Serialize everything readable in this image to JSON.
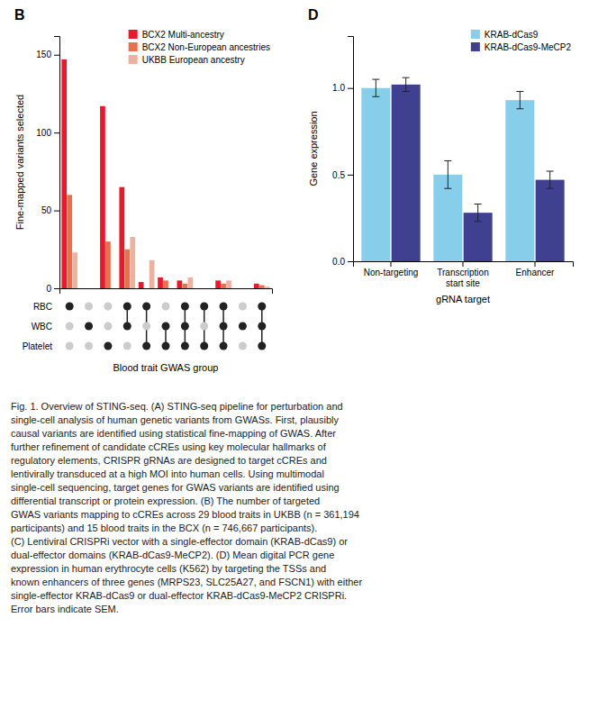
{
  "chart_data": [
    {
      "type": "bar",
      "title": "B",
      "categories": [
        null,
        null,
        null,
        null,
        null,
        null,
        null,
        null,
        null,
        null,
        null
      ],
      "series": [
        {
          "name": "BCX2 Multi-ancestry",
          "color": "#e8192c",
          "values": [
            147,
            0,
            117,
            65,
            4,
            7,
            5,
            0,
            5,
            0,
            3
          ]
        },
        {
          "name": "BCX2 Non-European ancestries",
          "color": "#e87050",
          "values": [
            60,
            0,
            30,
            25,
            0,
            5,
            3,
            0,
            3,
            0,
            2
          ]
        },
        {
          "name": "UKBB European ancestry",
          "color": "#f0b0a0",
          "values": [
            23,
            0,
            0,
            33,
            18,
            0,
            7,
            0,
            5,
            0,
            1
          ]
        }
      ],
      "ylabel": "Fine-mapped variants selected",
      "xlabel": "Blood trait GWAS group",
      "ylim": [
        0,
        162
      ],
      "yticks": [
        0,
        50,
        100,
        150
      ],
      "legend": "upper right",
      "dot_matrix": {
        "rows": [
          "RBC",
          "WBC",
          "Platelet"
        ],
        "values": [
          [
            1,
            0,
            0
          ],
          [
            0,
            1,
            0
          ],
          [
            0,
            0,
            1
          ],
          [
            1,
            1,
            0
          ],
          [
            1,
            0,
            1
          ],
          [
            0,
            1,
            1
          ],
          [
            1,
            1,
            1
          ],
          [
            1,
            0,
            1
          ],
          [
            1,
            1,
            1
          ],
          [
            0,
            1,
            0
          ],
          [
            1,
            1,
            1
          ]
        ]
      },
      "annotations": [
        "Fig. 1. Overview of STING-seq. (A) STING-seq pipeline for perturbation and\nsingle-cell analysis of human genetic variants from GWASs. First, plausibly\ncausal variants are identified using statistical fine-mapping of GWAS. After\nfurther refinement of candidate cCREs using key molecular hallmarks of\nregulatory elements, CRISPR gRNAs are designed to target cCREs and\nlentivirally transduced at a high MOI into human cells. Using multimodal\nsingle-cell sequencing, target genes for GWAS variants are identified using\ndifferential transcript or protein expression. (B) The number of targeted"
      ]
    },
    {
      "type": "bar",
      "title": "D",
      "categories": [
        "Non-targeting",
        "Transcription\nstart site",
        "Enhancer"
      ],
      "series": [
        {
          "name": "KRAB-dCas9",
          "color": "#87ceeb",
          "values": [
            1.0,
            0.5,
            0.93
          ],
          "errors": [
            0.05,
            0.08,
            0.05
          ]
        },
        {
          "name": "KRAB-dCas9-MeCP2",
          "color": "#404090",
          "values": [
            1.02,
            0.28,
            0.47
          ],
          "errors": [
            0.04,
            0.05,
            0.05
          ]
        }
      ],
      "ylabel": "Gene expression",
      "xlabel": "gRNA target",
      "ylim": [
        0,
        1.3
      ],
      "yticks": [
        {
          "value": 0,
          "label": "0.0"
        },
        {
          "value": 0.5,
          "label": "0.5"
        },
        {
          "value": 1,
          "label": "1.0"
        }
      ],
      "legend": "upper right",
      "annotations": [
        "GWAS variants mapping to cCREs across 29 blood traits in UKBB (n = 361,194\nparticipants) and 15 blood traits in the BCX (n = 746,667 participants).\n(C) Lentiviral CRISPRi vector with a single-effector domain (KRAB-dCas9) or\ndual-effector domains (KRAB-dCas9-MeCP2). (D) Mean digital PCR gene\nexpression in human erythrocyte cells (K562) by targeting the TSSs and\nknown enhancers of three genes (MRPS23, SLC25A27, and FSCN1) with either\nsingle-effector KRAB-dCas9 or dual-effector KRAB-dCas9-MeCP2 CRISPRi.\nError bars indicate SEM."
      ]
    }
  ]
}
